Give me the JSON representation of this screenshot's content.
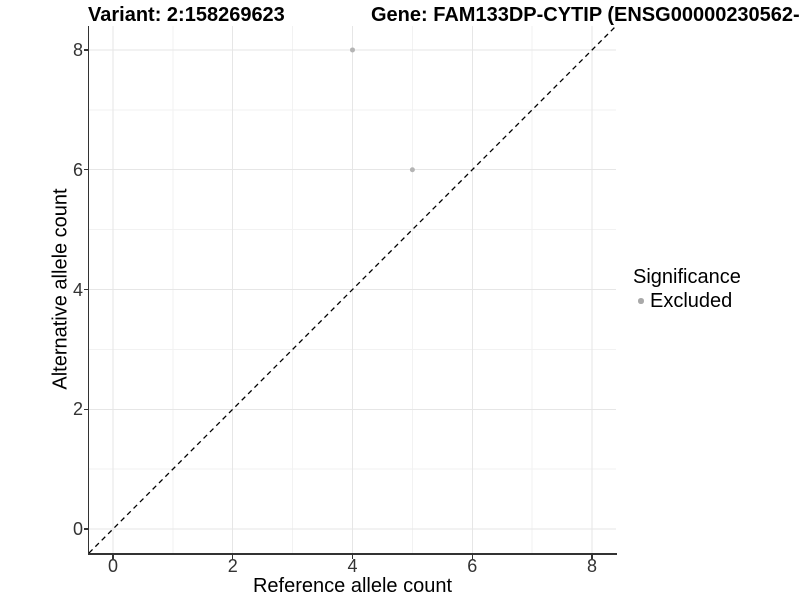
{
  "titles": {
    "left": "Variant: 2:158269623",
    "right": "Gene: FAM133DP-CYTIP (ENSG00000230562-"
  },
  "chart_data": {
    "type": "scatter",
    "title": "Variant: 2:158269623 — Gene: FAM133DP-CYTIP (ENSG00000230562-",
    "xlabel": "Reference allele count",
    "ylabel": "Alternative allele count",
    "xlim": [
      -0.4,
      8.4
    ],
    "ylim": [
      -0.4,
      8.4
    ],
    "x_major_ticks": [
      0,
      2,
      4,
      6,
      8
    ],
    "y_major_ticks": [
      0,
      2,
      4,
      6,
      8
    ],
    "x_minor_ticks": [
      1,
      3,
      5,
      7
    ],
    "y_minor_ticks": [
      1,
      3,
      5,
      7
    ],
    "grid": "on",
    "legend_position": "right",
    "identity_line": {
      "style": "dashed",
      "x1": -0.4,
      "y1": -0.4,
      "x2": 8.4,
      "y2": 8.4,
      "color": "#000000"
    },
    "series": [
      {
        "name": "Excluded",
        "color": "#b4b4b4",
        "points": [
          {
            "x": 4,
            "y": 8
          },
          {
            "x": 5,
            "y": 6
          }
        ]
      }
    ]
  },
  "legend": {
    "title": "Significance",
    "items": [
      {
        "label": "Excluded",
        "color": "#a9a9a9"
      }
    ]
  },
  "colors": {
    "grid_major": "#e6e6e6",
    "grid_minor": "#f2f2f2",
    "axis_line": "#333333",
    "point": "#b4b4b4",
    "identity_line": "#000000"
  }
}
